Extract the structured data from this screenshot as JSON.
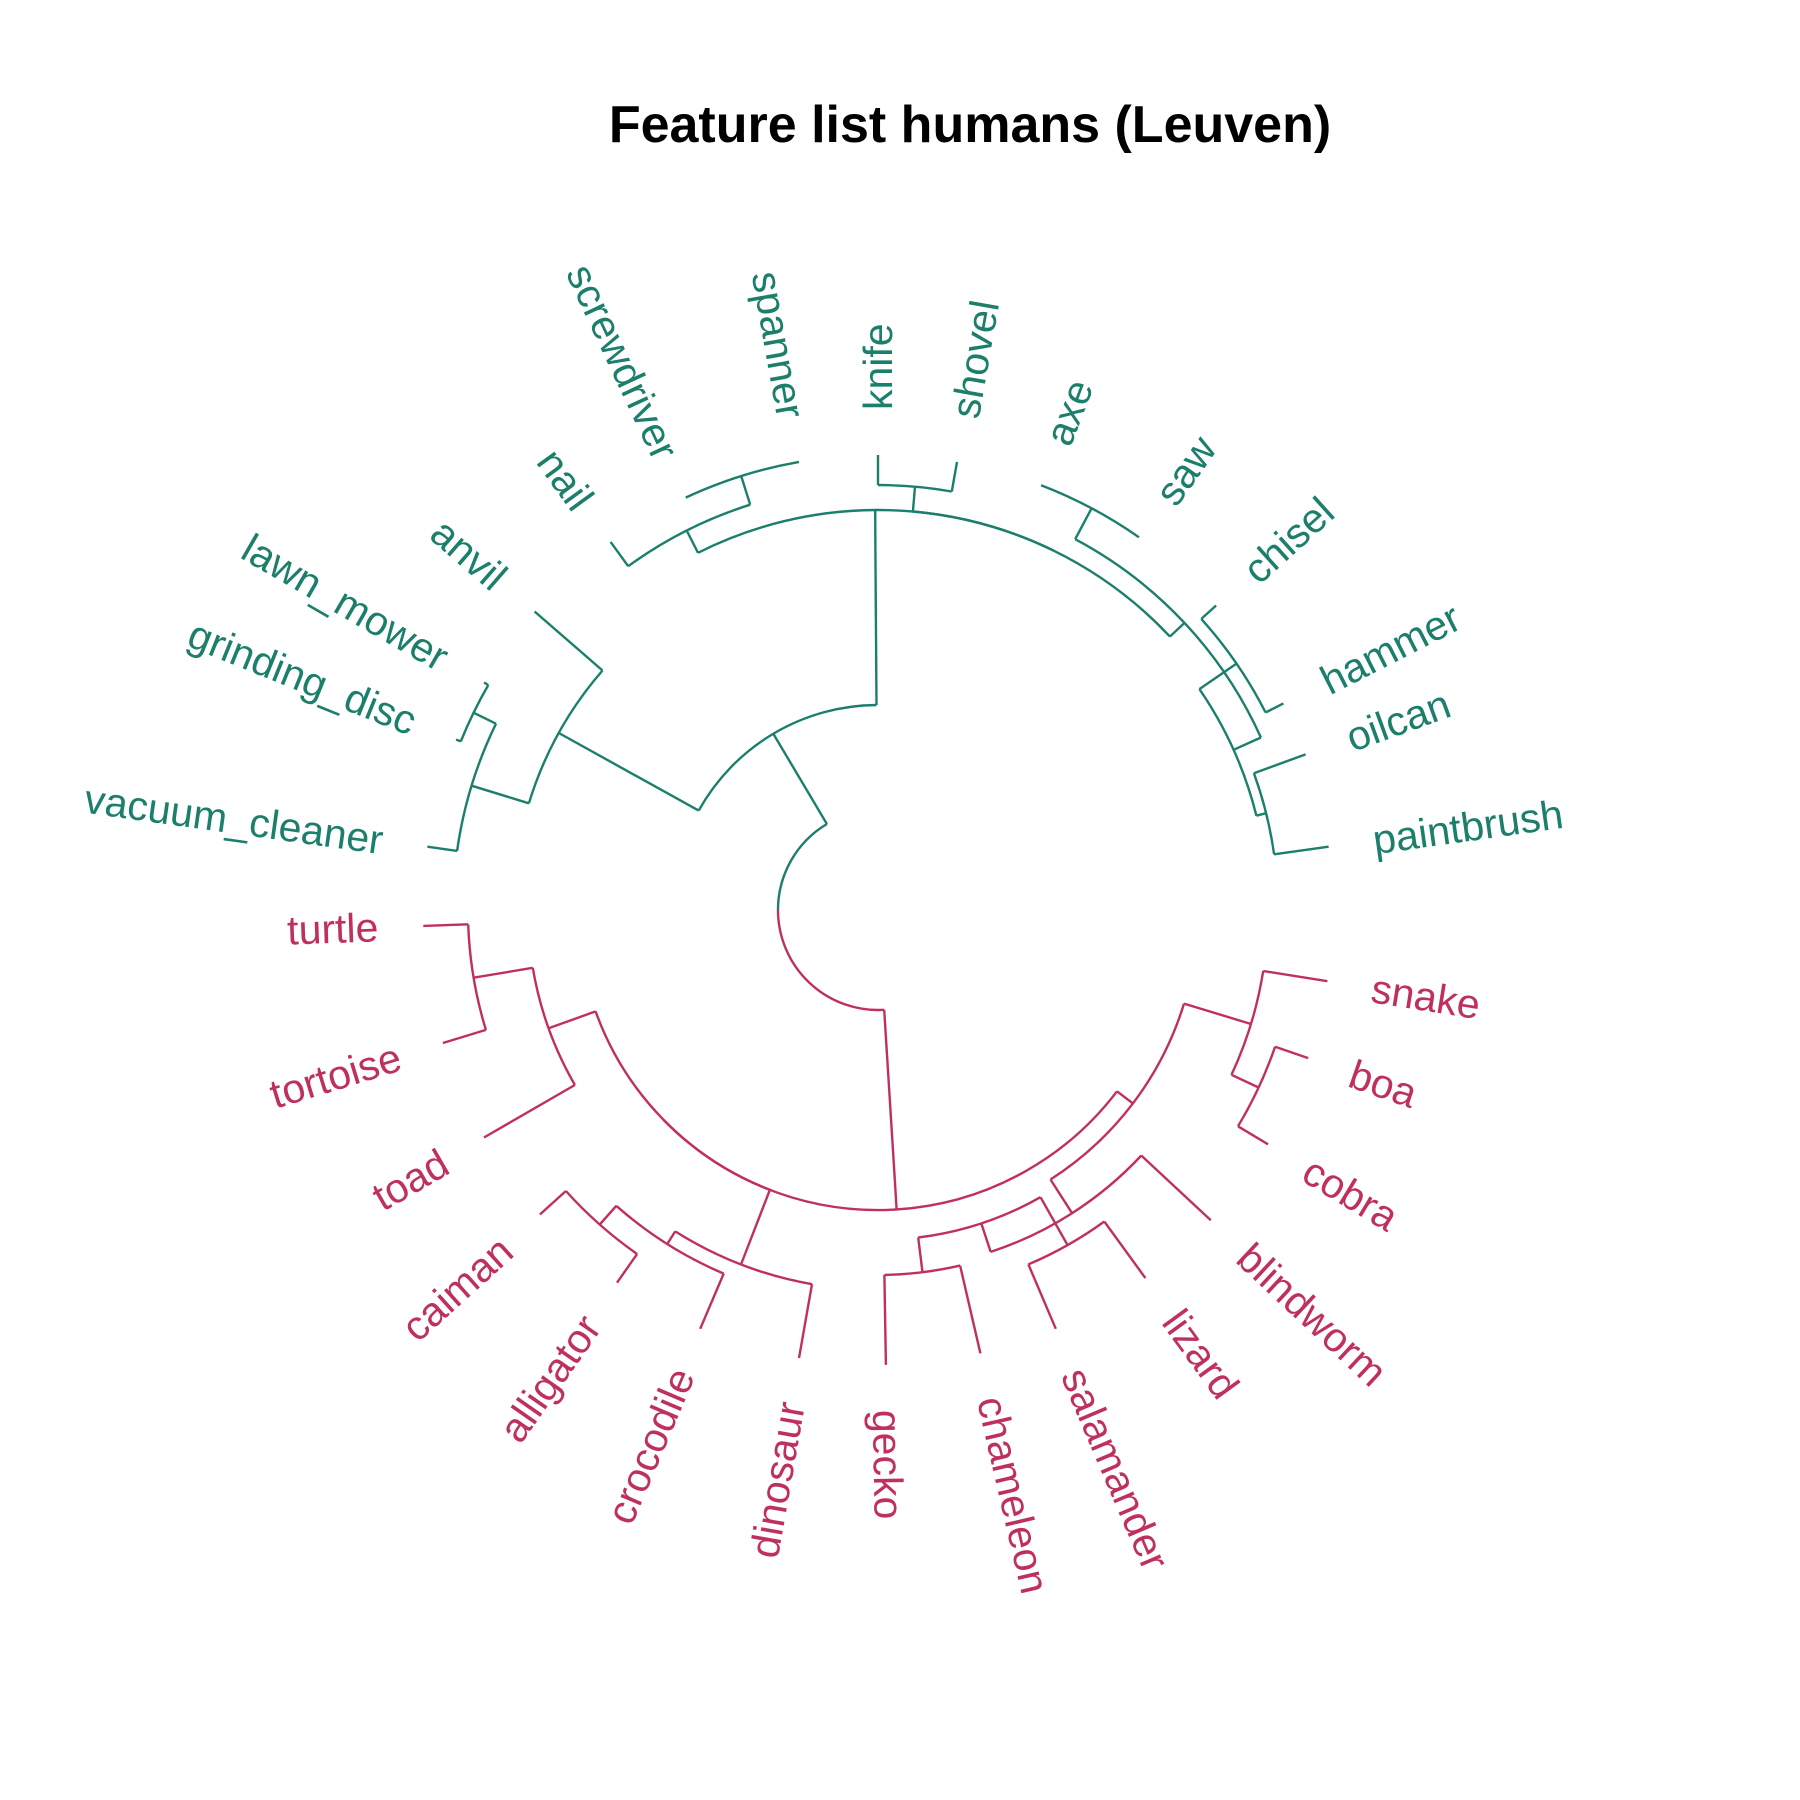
{
  "title": "Feature list humans (Leuven)",
  "colors": {
    "tools": "#1b7f6c",
    "reptiles": "#c0305e",
    "title": "#000000"
  },
  "clusters": {
    "tools": [
      "anvil",
      "grinding_disc",
      "lawn_mower",
      "vacuum_cleaner",
      "nail",
      "screwdriver",
      "spanner",
      "knife",
      "shovel",
      "axe",
      "saw",
      "chisel",
      "hammer",
      "oilcan",
      "paintbrush"
    ],
    "reptiles": [
      "turtle",
      "tortoise",
      "toad",
      "caiman",
      "alligator",
      "crocodile",
      "dinosaur",
      "gecko",
      "chameleon",
      "salamander",
      "lizard",
      "blindworm",
      "cobra",
      "boa",
      "snake"
    ]
  },
  "leaves": [
    {
      "label": "vacuum_cleaner",
      "color": "#1b7f6c"
    },
    {
      "label": "grinding_disc",
      "color": "#1b7f6c"
    },
    {
      "label": "lawn_mower",
      "color": "#1b7f6c"
    },
    {
      "label": "anvil",
      "color": "#1b7f6c"
    },
    {
      "label": "nail",
      "color": "#1b7f6c"
    },
    {
      "label": "screwdriver",
      "color": "#1b7f6c"
    },
    {
      "label": "spanner",
      "color": "#1b7f6c"
    },
    {
      "label": "knife",
      "color": "#1b7f6c"
    },
    {
      "label": "shovel",
      "color": "#1b7f6c"
    },
    {
      "label": "axe",
      "color": "#1b7f6c"
    },
    {
      "label": "saw",
      "color": "#1b7f6c"
    },
    {
      "label": "chisel",
      "color": "#1b7f6c"
    },
    {
      "label": "hammer",
      "color": "#1b7f6c"
    },
    {
      "label": "oilcan",
      "color": "#1b7f6c"
    },
    {
      "label": "paintbrush",
      "color": "#1b7f6c"
    },
    {
      "label": "snake",
      "color": "#c0305e"
    },
    {
      "label": "boa",
      "color": "#c0305e"
    },
    {
      "label": "cobra",
      "color": "#c0305e"
    },
    {
      "label": "blindworm",
      "color": "#c0305e"
    },
    {
      "label": "lizard",
      "color": "#c0305e"
    },
    {
      "label": "salamander",
      "color": "#c0305e"
    },
    {
      "label": "chameleon",
      "color": "#c0305e"
    },
    {
      "label": "gecko",
      "color": "#c0305e"
    },
    {
      "label": "dinosaur",
      "color": "#c0305e"
    },
    {
      "label": "crocodile",
      "color": "#c0305e"
    },
    {
      "label": "alligator",
      "color": "#c0305e"
    },
    {
      "label": "caiman",
      "color": "#c0305e"
    },
    {
      "label": "toad",
      "color": "#c0305e"
    },
    {
      "label": "tortoise",
      "color": "#c0305e"
    },
    {
      "label": "turtle",
      "color": "#c0305e"
    }
  ]
}
